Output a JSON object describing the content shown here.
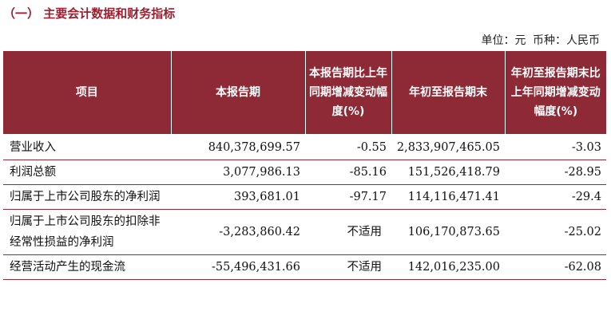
{
  "section": {
    "title": "（一）  主要会计数据和财务指标"
  },
  "unit_line": {
    "unit": "单位：元",
    "currency": "币种：人民币"
  },
  "table": {
    "headers": [
      "项目",
      "本报告期",
      "本报告期比上年同期增减变动幅度(%)",
      "年初至报告期末",
      "年初至报告期末比上年同期增减变动幅度(%)"
    ],
    "rows": [
      {
        "item": "营业收入",
        "current": "840,378,699.57",
        "current_change": "-0.55",
        "ytd": "2,833,907,465.05",
        "ytd_change": "-3.03"
      },
      {
        "item": "利润总额",
        "current": "3,077,986.13",
        "current_change": "-85.16",
        "ytd": "151,526,418.79",
        "ytd_change": "-28.95"
      },
      {
        "item": "归属于上市公司股东的净利润",
        "current": "393,681.01",
        "current_change": "-97.17",
        "ytd": "114,116,471.41",
        "ytd_change": "-29.4"
      },
      {
        "item": "归属于上市公司股东的扣除非经常性损益的净利润",
        "current": "-3,283,860.42",
        "current_change": "不适用",
        "ytd": "106,170,873.65",
        "ytd_change": "-25.02"
      },
      {
        "item": "经营活动产生的现金流",
        "current": "-55,496,431.66",
        "current_change": "不适用",
        "ytd": "142,016,235.00",
        "ytd_change": "-62.08"
      }
    ]
  }
}
